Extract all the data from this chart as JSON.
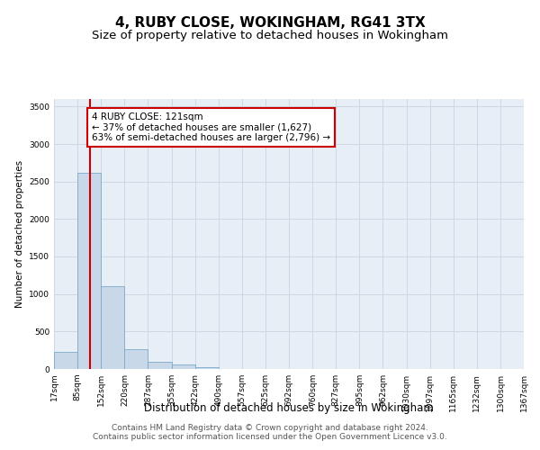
{
  "title": "4, RUBY CLOSE, WOKINGHAM, RG41 3TX",
  "subtitle": "Size of property relative to detached houses in Wokingham",
  "xlabel": "Distribution of detached houses by size in Wokingham",
  "ylabel": "Number of detached properties",
  "bar_color": "#c8d8e8",
  "bar_edge_color": "#7aaac8",
  "vline_x": 121,
  "vline_color": "#cc0000",
  "annotation_text": "4 RUBY CLOSE: 121sqm\n← 37% of detached houses are smaller (1,627)\n63% of semi-detached houses are larger (2,796) →",
  "annotation_box_color": "#ffffff",
  "annotation_box_edge": "#cc0000",
  "bin_edges": [
    17,
    85,
    152,
    220,
    287,
    355,
    422,
    490,
    557,
    625,
    692,
    760,
    827,
    895,
    962,
    1030,
    1097,
    1165,
    1232,
    1300,
    1367
  ],
  "bin_heights": [
    230,
    2620,
    1100,
    265,
    100,
    55,
    30,
    0,
    0,
    0,
    0,
    0,
    0,
    0,
    0,
    0,
    0,
    0,
    0,
    0
  ],
  "ylim": [
    0,
    3600
  ],
  "yticks": [
    0,
    500,
    1000,
    1500,
    2000,
    2500,
    3000,
    3500
  ],
  "background_color": "#ffffff",
  "plot_bg_color": "#e8eef5",
  "grid_color": "#c8d4e0",
  "footer_text": "Contains HM Land Registry data © Crown copyright and database right 2024.\nContains public sector information licensed under the Open Government Licence v3.0.",
  "title_fontsize": 11,
  "subtitle_fontsize": 9.5,
  "xlabel_fontsize": 8.5,
  "ylabel_fontsize": 7.5,
  "tick_fontsize": 6.5,
  "footer_fontsize": 6.5,
  "annot_fontsize": 7.5
}
